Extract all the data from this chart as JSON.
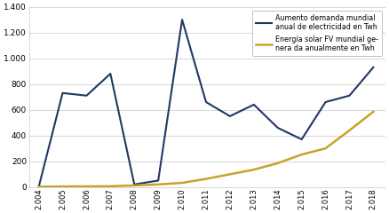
{
  "years": [
    2004,
    2005,
    2006,
    2007,
    2008,
    2009,
    2010,
    2011,
    2012,
    2013,
    2014,
    2015,
    2016,
    2017,
    2018
  ],
  "demand_increase": [
    0,
    730,
    710,
    880,
    20,
    50,
    1300,
    660,
    550,
    640,
    460,
    370,
    660,
    710,
    930
  ],
  "solar_generated": [
    2,
    4,
    5,
    6,
    12,
    20,
    32,
    63,
    99,
    135,
    185,
    252,
    300,
    440,
    585
  ],
  "line1_color": "#1F3864",
  "line2_color": "#C9A227",
  "legend1": "Aumento demanda mundial\nanual de electricidad en Twh",
  "legend2": "Energía solar FV mundial ge-\nnera da anualmente en Twh",
  "ylim": [
    0,
    1400
  ],
  "yticks": [
    0,
    200,
    400,
    600,
    800,
    1000,
    1200,
    1400
  ],
  "bg_color": "#FFFFFF",
  "grid_color": "#C8C8C8"
}
